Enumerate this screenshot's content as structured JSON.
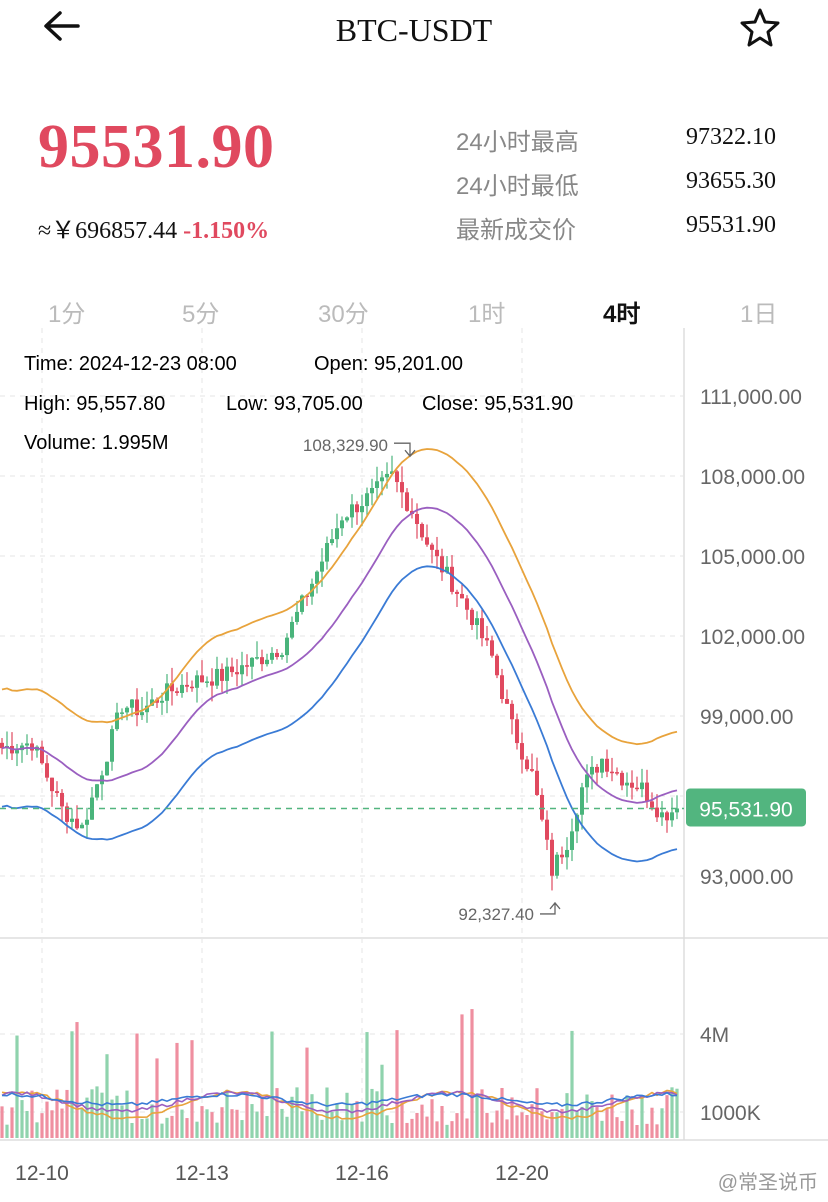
{
  "header": {
    "title": "BTC-USDT"
  },
  "ticker": {
    "price": "95531.90",
    "cny_prefix": "≈￥",
    "cny_value": "696857.44",
    "change_pct": "-1.150%",
    "high_label": "24小时最高",
    "high_value": "97322.10",
    "low_label": "24小时最低",
    "low_value": "93655.30",
    "last_label": "最新成交价",
    "last_value": "95531.90"
  },
  "tabs": [
    {
      "label": "1分",
      "active": false
    },
    {
      "label": "5分",
      "active": false
    },
    {
      "label": "30分",
      "active": false
    },
    {
      "label": "1时",
      "active": false
    },
    {
      "label": "4时",
      "active": true
    },
    {
      "label": "1日",
      "active": false
    }
  ],
  "info": {
    "time": "Time: 2024-12-23 08:00",
    "open": "Open: 95,201.00",
    "high": "High: 95,557.80",
    "low": "Low: 93,705.00",
    "close": "Close: 95,531.90",
    "volume": "Volume: 1.995M"
  },
  "chart_data": {
    "type": "candlestick",
    "y_ticks": [
      "111,000.00",
      "108,000.00",
      "105,000.00",
      "102,000.00",
      "99,000.00",
      "93,000.00"
    ],
    "y_tick_values": [
      111000,
      108000,
      105000,
      102000,
      99000,
      93000
    ],
    "volume_ticks": [
      "4M",
      "1000K"
    ],
    "volume_tick_values": [
      4000000,
      1000000
    ],
    "x_ticks": [
      "12-10",
      "12-13",
      "12-16",
      "12-20"
    ],
    "current_price": "95,531.90",
    "current_price_value": 95531.9,
    "max_marker": "108,329.90",
    "max_value": 108329.9,
    "min_marker": "92,327.40",
    "min_value": 92327.4,
    "colors": {
      "up": "#49b47b",
      "down": "#e0495f",
      "ma1": "#e8a33c",
      "ma2": "#9a5fc0",
      "ma3": "#3a7bd5",
      "price_tag": "#52b57f"
    }
  },
  "watermark": "@常圣说币"
}
